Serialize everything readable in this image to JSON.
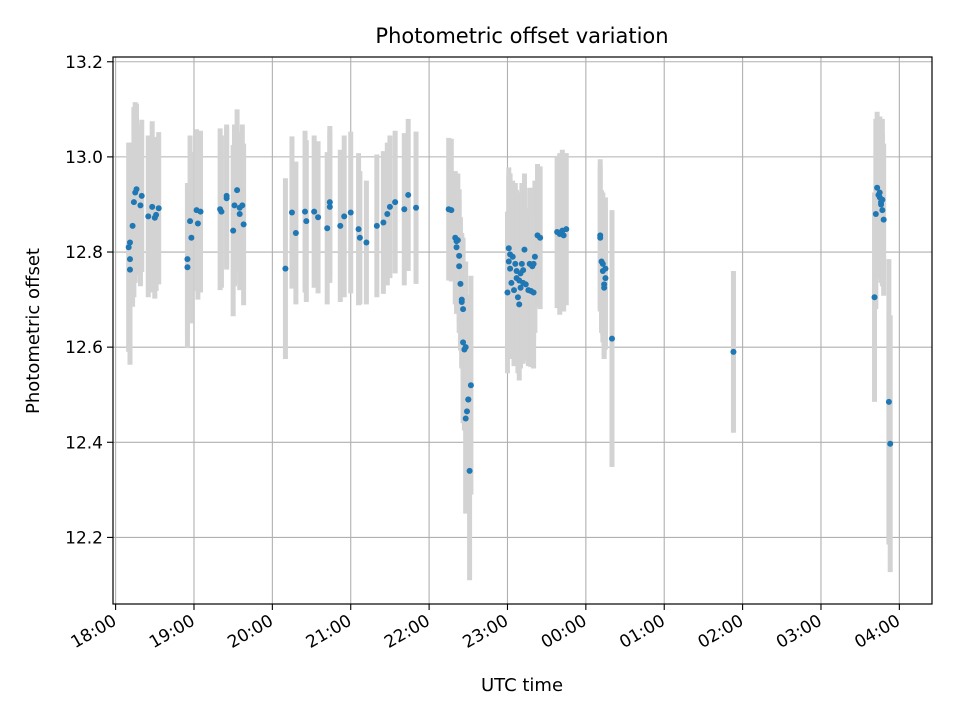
{
  "chart_data": {
    "type": "scatter",
    "title": "Photometric offset variation",
    "xlabel": "UTC time",
    "ylabel": "Photometric offset",
    "x_ticks": [
      "18:00",
      "19:00",
      "20:00",
      "21:00",
      "22:00",
      "23:00",
      "00:00",
      "01:00",
      "02:00",
      "03:00",
      "04:00"
    ],
    "y_ticks": [
      "12.2",
      "12.4",
      "12.6",
      "12.8",
      "13.0",
      "13.2"
    ],
    "ylim": [
      12.06,
      13.21
    ],
    "xlim": [
      "17:58",
      "04:25"
    ],
    "grid": true,
    "colors": {
      "points": "#1f77b4",
      "errorbars": "#d3d3d3",
      "grid": "#b0b0b0"
    },
    "series": [
      {
        "points": [
          {
            "x": "18:10",
            "y": 12.81,
            "err": 0.22
          },
          {
            "x": "18:11",
            "y": 12.82,
            "err": 0.21
          },
          {
            "x": "18:11",
            "y": 12.785,
            "err": 0.22
          },
          {
            "x": "18:11",
            "y": 12.763,
            "err": 0.2
          },
          {
            "x": "18:13",
            "y": 12.855,
            "err": 0.17
          },
          {
            "x": "18:14",
            "y": 12.905,
            "err": 0.2
          },
          {
            "x": "18:15",
            "y": 12.925,
            "err": 0.19
          },
          {
            "x": "18:16",
            "y": 12.932,
            "err": 0.18
          },
          {
            "x": "18:19",
            "y": 12.898,
            "err": 0.17
          },
          {
            "x": "18:20",
            "y": 12.918,
            "err": 0.16
          },
          {
            "x": "18:25",
            "y": 12.875,
            "err": 0.17
          },
          {
            "x": "18:28",
            "y": 12.895,
            "err": 0.18
          },
          {
            "x": "18:30",
            "y": 12.872,
            "err": 0.17
          },
          {
            "x": "18:31",
            "y": 12.878,
            "err": 0.16
          },
          {
            "x": "18:33",
            "y": 12.892,
            "err": 0.16
          },
          {
            "x": "18:55",
            "y": 12.785,
            "err": 0.16
          },
          {
            "x": "18:55",
            "y": 12.768,
            "err": 0.17
          },
          {
            "x": "18:57",
            "y": 12.865,
            "err": 0.18
          },
          {
            "x": "18:58",
            "y": 12.83,
            "err": 0.18
          },
          {
            "x": "19:02",
            "y": 12.888,
            "err": 0.17
          },
          {
            "x": "19:03",
            "y": 12.86,
            "err": 0.16
          },
          {
            "x": "19:05",
            "y": 12.885,
            "err": 0.17
          },
          {
            "x": "19:20",
            "y": 12.89,
            "err": 0.17
          },
          {
            "x": "19:21",
            "y": 12.885,
            "err": 0.16
          },
          {
            "x": "19:25",
            "y": 12.913,
            "err": 0.15
          },
          {
            "x": "19:25",
            "y": 12.918,
            "err": 0.15
          },
          {
            "x": "19:30",
            "y": 12.845,
            "err": 0.18
          },
          {
            "x": "19:31",
            "y": 12.898,
            "err": 0.17
          },
          {
            "x": "19:33",
            "y": 12.93,
            "err": 0.17
          },
          {
            "x": "19:35",
            "y": 12.893,
            "err": 0.16
          },
          {
            "x": "19:35",
            "y": 12.88,
            "err": 0.16
          },
          {
            "x": "19:37",
            "y": 12.898,
            "err": 0.17
          },
          {
            "x": "19:38",
            "y": 12.858,
            "err": 0.17
          },
          {
            "x": "20:10",
            "y": 12.765,
            "err": 0.19
          },
          {
            "x": "20:15",
            "y": 12.883,
            "err": 0.16
          },
          {
            "x": "20:18",
            "y": 12.84,
            "err": 0.15
          },
          {
            "x": "20:25",
            "y": 12.885,
            "err": 0.17
          },
          {
            "x": "20:26",
            "y": 12.865,
            "err": 0.17
          },
          {
            "x": "20:32",
            "y": 12.885,
            "err": 0.16
          },
          {
            "x": "20:35",
            "y": 12.873,
            "err": 0.16
          },
          {
            "x": "20:42",
            "y": 12.85,
            "err": 0.16
          },
          {
            "x": "20:44",
            "y": 12.905,
            "err": 0.16
          },
          {
            "x": "20:44",
            "y": 12.895,
            "err": 0.16
          },
          {
            "x": "20:52",
            "y": 12.855,
            "err": 0.16
          },
          {
            "x": "20:55",
            "y": 12.875,
            "err": 0.17
          },
          {
            "x": "21:00",
            "y": 12.883,
            "err": 0.17
          },
          {
            "x": "21:06",
            "y": 12.848,
            "err": 0.16
          },
          {
            "x": "21:07",
            "y": 12.83,
            "err": 0.14
          },
          {
            "x": "21:12",
            "y": 12.82,
            "err": 0.13
          },
          {
            "x": "21:20",
            "y": 12.855,
            "err": 0.15
          },
          {
            "x": "21:25",
            "y": 12.862,
            "err": 0.15
          },
          {
            "x": "21:28",
            "y": 12.88,
            "err": 0.15
          },
          {
            "x": "21:30",
            "y": 12.895,
            "err": 0.15
          },
          {
            "x": "21:34",
            "y": 12.905,
            "err": 0.15
          },
          {
            "x": "21:41",
            "y": 12.89,
            "err": 0.16
          },
          {
            "x": "21:44",
            "y": 12.92,
            "err": 0.16
          },
          {
            "x": "21:50",
            "y": 12.893,
            "err": 0.16
          },
          {
            "x": "22:15",
            "y": 12.89,
            "err": 0.15
          },
          {
            "x": "22:17",
            "y": 12.888,
            "err": 0.15
          },
          {
            "x": "22:20",
            "y": 12.83,
            "err": 0.14
          },
          {
            "x": "22:21",
            "y": 12.823,
            "err": 0.14
          },
          {
            "x": "22:21",
            "y": 12.81,
            "err": 0.14
          },
          {
            "x": "22:22",
            "y": 12.825,
            "err": 0.14
          },
          {
            "x": "22:23",
            "y": 12.792,
            "err": 0.14
          },
          {
            "x": "22:23",
            "y": 12.77,
            "err": 0.14
          },
          {
            "x": "22:24",
            "y": 12.733,
            "err": 0.14
          },
          {
            "x": "22:25",
            "y": 12.695,
            "err": 0.14
          },
          {
            "x": "22:25",
            "y": 12.7,
            "err": 0.14
          },
          {
            "x": "22:26",
            "y": 12.68,
            "err": 0.15
          },
          {
            "x": "22:26",
            "y": 12.61,
            "err": 0.17
          },
          {
            "x": "22:27",
            "y": 12.595,
            "err": 0.17
          },
          {
            "x": "22:28",
            "y": 12.6,
            "err": 0.18
          },
          {
            "x": "22:28",
            "y": 12.45,
            "err": 0.2
          },
          {
            "x": "22:29",
            "y": 12.465,
            "err": 0.2
          },
          {
            "x": "22:30",
            "y": 12.49,
            "err": 0.21
          },
          {
            "x": "22:30",
            "y": 12.49,
            "err": 0.22
          },
          {
            "x": "22:32",
            "y": 12.52,
            "err": 0.23
          },
          {
            "x": "22:31",
            "y": 12.34,
            "err": 0.23
          },
          {
            "x": "23:00",
            "y": 12.715,
            "err": 0.17
          },
          {
            "x": "23:01",
            "y": 12.78,
            "err": 0.18
          },
          {
            "x": "23:01",
            "y": 12.808,
            "err": 0.17
          },
          {
            "x": "23:02",
            "y": 12.795,
            "err": 0.17
          },
          {
            "x": "23:02",
            "y": 12.765,
            "err": 0.16
          },
          {
            "x": "23:03",
            "y": 12.735,
            "err": 0.16
          },
          {
            "x": "23:04",
            "y": 12.79,
            "err": 0.16
          },
          {
            "x": "23:05",
            "y": 12.72,
            "err": 0.16
          },
          {
            "x": "23:06",
            "y": 12.775,
            "err": 0.17
          },
          {
            "x": "23:07",
            "y": 12.76,
            "err": 0.17
          },
          {
            "x": "23:07",
            "y": 12.745,
            "err": 0.17
          },
          {
            "x": "23:08",
            "y": 12.705,
            "err": 0.16
          },
          {
            "x": "23:09",
            "y": 12.69,
            "err": 0.16
          },
          {
            "x": "23:09",
            "y": 12.74,
            "err": 0.17
          },
          {
            "x": "23:10",
            "y": 12.755,
            "err": 0.17
          },
          {
            "x": "23:10",
            "y": 12.725,
            "err": 0.17
          },
          {
            "x": "23:11",
            "y": 12.775,
            "err": 0.17
          },
          {
            "x": "23:12",
            "y": 12.762,
            "err": 0.17
          },
          {
            "x": "23:12",
            "y": 12.735,
            "err": 0.17
          },
          {
            "x": "23:13",
            "y": 12.805,
            "err": 0.16
          },
          {
            "x": "23:14",
            "y": 12.732,
            "err": 0.16
          },
          {
            "x": "23:16",
            "y": 12.72,
            "err": 0.16
          },
          {
            "x": "23:17",
            "y": 12.775,
            "err": 0.16
          },
          {
            "x": "23:18",
            "y": 12.718,
            "err": 0.16
          },
          {
            "x": "23:19",
            "y": 12.77,
            "err": 0.16
          },
          {
            "x": "23:20",
            "y": 12.715,
            "err": 0.16
          },
          {
            "x": "23:20",
            "y": 12.775,
            "err": 0.16
          },
          {
            "x": "23:21",
            "y": 12.79,
            "err": 0.16
          },
          {
            "x": "23:23",
            "y": 12.835,
            "err": 0.15
          },
          {
            "x": "23:25",
            "y": 12.83,
            "err": 0.15
          },
          {
            "x": "23:38",
            "y": 12.842,
            "err": 0.16
          },
          {
            "x": "23:40",
            "y": 12.838,
            "err": 0.17
          },
          {
            "x": "23:42",
            "y": 12.845,
            "err": 0.17
          },
          {
            "x": "23:43",
            "y": 12.835,
            "err": 0.16
          },
          {
            "x": "23:45",
            "y": 12.848,
            "err": 0.16
          },
          {
            "x": "00:11",
            "y": 12.835,
            "err": 0.16
          },
          {
            "x": "00:11",
            "y": 12.83,
            "err": 0.15
          },
          {
            "x": "00:12",
            "y": 12.78,
            "err": 0.15
          },
          {
            "x": "00:13",
            "y": 12.775,
            "err": 0.15
          },
          {
            "x": "00:13",
            "y": 12.76,
            "err": 0.15
          },
          {
            "x": "00:14",
            "y": 12.732,
            "err": 0.15
          },
          {
            "x": "00:14",
            "y": 12.725,
            "err": 0.15
          },
          {
            "x": "00:15",
            "y": 12.745,
            "err": 0.15
          },
          {
            "x": "00:15",
            "y": 12.765,
            "err": 0.15
          },
          {
            "x": "00:20",
            "y": 12.618,
            "err": 0.27
          },
          {
            "x": "01:53",
            "y": 12.59,
            "err": 0.17
          },
          {
            "x": "03:41",
            "y": 12.705,
            "err": 0.22
          },
          {
            "x": "03:42",
            "y": 12.88,
            "err": 0.2
          },
          {
            "x": "03:43",
            "y": 12.935,
            "err": 0.16
          },
          {
            "x": "03:44",
            "y": 12.92,
            "err": 0.16
          },
          {
            "x": "03:45",
            "y": 12.925,
            "err": 0.16
          },
          {
            "x": "03:45",
            "y": 12.915,
            "err": 0.17
          },
          {
            "x": "03:46",
            "y": 12.9,
            "err": 0.16
          },
          {
            "x": "03:46",
            "y": 12.905,
            "err": 0.17
          },
          {
            "x": "03:47",
            "y": 12.91,
            "err": 0.17
          },
          {
            "x": "03:47",
            "y": 12.888,
            "err": 0.16
          },
          {
            "x": "03:48",
            "y": 12.868,
            "err": 0.16
          },
          {
            "x": "03:52",
            "y": 12.485,
            "err": 0.3
          },
          {
            "x": "03:53",
            "y": 12.397,
            "err": 0.27
          }
        ]
      }
    ]
  }
}
